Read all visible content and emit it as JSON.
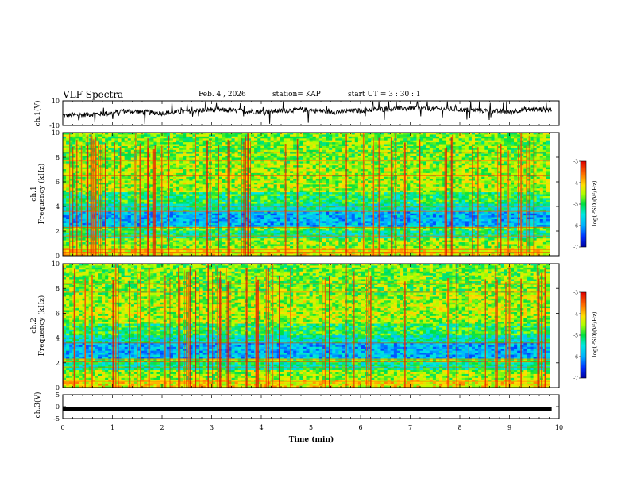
{
  "header": {
    "title": "VLF Spectra",
    "date": "Feb. 4 , 2026",
    "station": "station= KAP",
    "start": "start  UT =  3 : 30 : 1"
  },
  "chart_data": [
    {
      "type": "line",
      "panel": "ch1-waveform",
      "ylabel": "ch.1(V)",
      "xlim": [
        0,
        10
      ],
      "ylim": [
        -10,
        10
      ],
      "yticks": [
        -10,
        10
      ],
      "xrange_data": [
        0,
        9.85
      ],
      "trend": [
        [
          0,
          -2
        ],
        [
          1,
          0
        ],
        [
          1.2,
          2
        ],
        [
          2,
          0
        ],
        [
          3,
          3
        ],
        [
          4,
          1
        ],
        [
          4.8,
          3
        ],
        [
          5.5,
          1
        ],
        [
          6.3,
          3
        ],
        [
          7,
          4
        ],
        [
          8,
          3
        ],
        [
          9,
          1
        ],
        [
          9.3,
          3
        ],
        [
          9.85,
          3
        ]
      ]
    },
    {
      "type": "heatmap",
      "panel": "ch1-spectrogram",
      "ylabel": "ch.1\nFrequency (kHz)",
      "xlim": [
        0,
        10
      ],
      "ylim": [
        0,
        10
      ],
      "yticks": [
        0,
        2,
        4,
        6,
        8,
        10
      ],
      "colorbar": {
        "label": "log(PSD)(V²/Hz)",
        "range": [
          -7,
          -3
        ],
        "ticks": [
          -7,
          -6,
          -5,
          -4,
          -3
        ]
      }
    },
    {
      "type": "heatmap",
      "panel": "ch2-spectrogram",
      "ylabel": "ch.2\nFrequency (kHz)",
      "xlim": [
        0,
        10
      ],
      "ylim": [
        0,
        10
      ],
      "yticks": [
        0,
        2,
        4,
        6,
        8,
        10
      ],
      "colorbar": {
        "label": "log(PSD)(V²/Hz)",
        "range": [
          -7,
          -3
        ],
        "ticks": [
          -7,
          -6,
          -5,
          -4,
          -3
        ]
      }
    },
    {
      "type": "line",
      "panel": "ch3-waveform",
      "ylabel": "ch.3(V)",
      "xlim": [
        0,
        10
      ],
      "ylim": [
        -5,
        5
      ],
      "yticks": [
        -5,
        0,
        5
      ],
      "xrange_data": [
        0,
        9.85
      ],
      "level": -1
    }
  ],
  "xaxis": {
    "label": "Time  (min)",
    "ticks": [
      "0",
      "1",
      "2",
      "3",
      "4",
      "5",
      "6",
      "7",
      "8",
      "9",
      "10"
    ]
  },
  "colors": {
    "axis": "#000000",
    "colormap": [
      "#1a1aa0",
      "#0060ff",
      "#00d8ff",
      "#00e040",
      "#d8ff00",
      "#ff8c00",
      "#e00000"
    ]
  }
}
